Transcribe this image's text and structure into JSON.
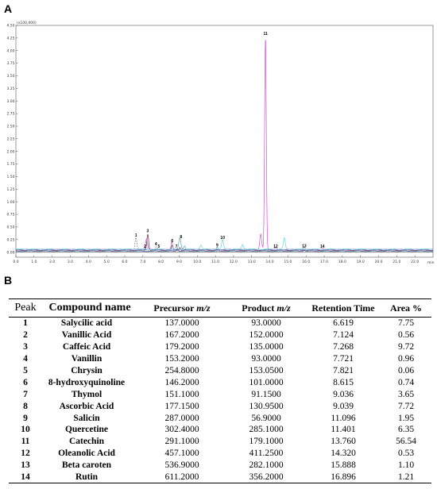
{
  "panels": {
    "a": "A",
    "b": "B"
  },
  "chart_data": {
    "type": "line",
    "y_multiplier_label": "(x100,000)",
    "x_unit_label": "min",
    "xlim": [
      0.0,
      23.0
    ],
    "ylim": [
      -0.1,
      4.5
    ],
    "x_ticks": [
      "0.0",
      "1.0",
      "2.0",
      "3.0",
      "4.0",
      "5.0",
      "6.0",
      "7.0",
      "8.0",
      "9.0",
      "10.0",
      "11.0",
      "12.0",
      "13.0",
      "14.0",
      "15.0",
      "16.0",
      "17.0",
      "18.0",
      "19.0",
      "20.0",
      "21.0",
      "22.0"
    ],
    "y_ticks": [
      "0.00",
      "0.25",
      "0.50",
      "0.75",
      "1.00",
      "1.25",
      "1.50",
      "1.75",
      "2.00",
      "2.25",
      "2.50",
      "2.75",
      "3.00",
      "3.25",
      "3.50",
      "3.75",
      "4.00",
      "4.25",
      "4.50"
    ],
    "series": [
      {
        "color": "#808080",
        "dash": "2,1.2",
        "baseline": 0.03,
        "peaks": [
          [
            6.62,
            0.27,
            0.05
          ],
          [
            7.12,
            0.05,
            0.03
          ],
          [
            7.72,
            0.08,
            0.04
          ],
          [
            7.82,
            0.04,
            0.03
          ]
        ]
      },
      {
        "color": "#5a2a4a",
        "dash": "",
        "baseline": 0.04,
        "peaks": [
          [
            7.27,
            0.32,
            0.05
          ],
          [
            8.62,
            0.09,
            0.04
          ],
          [
            9.04,
            0.06,
            0.04
          ]
        ]
      },
      {
        "color": "#d24fd2",
        "dash": "",
        "baseline": 0.05,
        "peaks": [
          [
            7.2,
            0.22,
            0.05
          ],
          [
            8.6,
            0.16,
            0.04
          ],
          [
            13.5,
            0.3,
            0.05
          ],
          [
            13.76,
            4.22,
            0.045
          ],
          [
            14.32,
            0.04,
            0.04
          ],
          [
            16.9,
            0.02,
            0.05
          ]
        ]
      },
      {
        "color": "#5aa0b8",
        "dash": "",
        "baseline": 0.05,
        "peaks": [
          [
            9.04,
            0.22,
            0.06
          ],
          [
            9.3,
            0.08,
            0.05
          ],
          [
            11.1,
            0.06,
            0.04
          ],
          [
            15.9,
            0.04,
            0.04
          ]
        ]
      },
      {
        "color": "#69d2dc",
        "dash": "",
        "baseline": 0.06,
        "peaks": [
          [
            10.2,
            0.08,
            0.05
          ],
          [
            11.4,
            0.18,
            0.05
          ],
          [
            12.5,
            0.1,
            0.05
          ],
          [
            14.8,
            0.22,
            0.05
          ]
        ]
      },
      {
        "color": "#3b5a9a",
        "dash": "",
        "baseline": 0.02,
        "peaks": [
          [
            8.9,
            0.05,
            0.05
          ],
          [
            15.9,
            0.03,
            0.05
          ]
        ]
      }
    ],
    "peak_labels": [
      {
        "label": "1",
        "x": 6.62,
        "y": 0.27
      },
      {
        "label": "2",
        "x": 7.12,
        "y": 0.05
      },
      {
        "label": "3",
        "x": 7.27,
        "y": 0.36
      },
      {
        "label": "4",
        "x": 7.72,
        "y": 0.1
      },
      {
        "label": "5",
        "x": 7.88,
        "y": 0.05
      },
      {
        "label": "6",
        "x": 8.62,
        "y": 0.16
      },
      {
        "label": "7",
        "x": 8.85,
        "y": 0.05
      },
      {
        "label": "8",
        "x": 9.1,
        "y": 0.24
      },
      {
        "label": "9",
        "x": 11.1,
        "y": 0.07
      },
      {
        "label": "10",
        "x": 11.4,
        "y": 0.22
      },
      {
        "label": "11",
        "x": 13.76,
        "y": 4.27
      },
      {
        "label": "12",
        "x": 14.32,
        "y": 0.05
      },
      {
        "label": "13",
        "x": 15.9,
        "y": 0.06
      },
      {
        "label": "14",
        "x": 16.9,
        "y": 0.05
      }
    ]
  },
  "table": {
    "headers": {
      "peak": "Peak",
      "compound": "Compound name",
      "precursor": "Precursor ",
      "product": "Product ",
      "mz": "m/z",
      "retention": "Retention Time",
      "area": "Area %"
    },
    "rows": [
      {
        "peak": "1",
        "compound": "Salycilic acid",
        "precursor": "137.0000",
        "product": "93.0000",
        "rt": "6.619",
        "area": "7.75"
      },
      {
        "peak": "2",
        "compound": "Vanillic Acid",
        "precursor": "167.2000",
        "product": "152.0000",
        "rt": "7.124",
        "area": "0.56"
      },
      {
        "peak": "3",
        "compound": "Caffeic Acid",
        "precursor": "179.2000",
        "product": "135.0000",
        "rt": "7.268",
        "area": "9.72"
      },
      {
        "peak": "4",
        "compound": "Vanillin",
        "precursor": "153.2000",
        "product": "93.0000",
        "rt": "7.721",
        "area": "0.96"
      },
      {
        "peak": "5",
        "compound": "Chrysin",
        "precursor": "254.8000",
        "product": "153.0500",
        "rt": "7.821",
        "area": "0.06"
      },
      {
        "peak": "6",
        "compound": "8-hydroxyquinoline",
        "precursor": "146.2000",
        "product": "101.0000",
        "rt": "8.615",
        "area": "0.74"
      },
      {
        "peak": "7",
        "compound": "Thymol",
        "precursor": "151.1000",
        "product": "91.1500",
        "rt": "9.036",
        "area": "3.65"
      },
      {
        "peak": "8",
        "compound": "Ascorbic Acid",
        "precursor": "177.1500",
        "product": "130.9500",
        "rt": "9.039",
        "area": "7.72"
      },
      {
        "peak": "9",
        "compound": "Salicin",
        "precursor": "287.0000",
        "product": "56.9000",
        "rt": "11.096",
        "area": "1.95"
      },
      {
        "peak": "10",
        "compound": "Quercetine",
        "precursor": "302.4000",
        "product": "285.1000",
        "rt": "11.401",
        "area": "6.35"
      },
      {
        "peak": "11",
        "compound": "Catechin",
        "precursor": "291.1000",
        "product": "179.1000",
        "rt": "13.760",
        "area": "56.54"
      },
      {
        "peak": "12",
        "compound": "Oleanolic Acid",
        "precursor": "457.1000",
        "product": "411.2500",
        "rt": "14.320",
        "area": "0.53"
      },
      {
        "peak": "13",
        "compound": "Beta caroten",
        "precursor": "536.9000",
        "product": "282.1000",
        "rt": "15.888",
        "area": "1.10"
      },
      {
        "peak": "14",
        "compound": "Rutin",
        "precursor": "611.2000",
        "product": "356.2000",
        "rt": "16.896",
        "area": "1.21"
      }
    ]
  }
}
